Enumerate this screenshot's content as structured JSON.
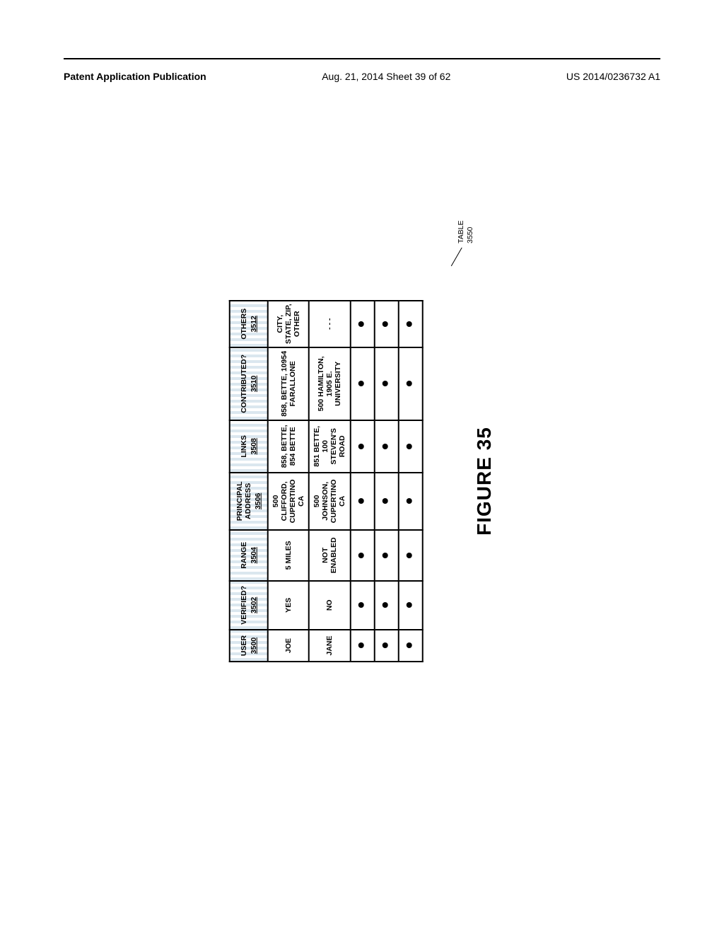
{
  "header": {
    "left": "Patent Application Publication",
    "center": "Aug. 21, 2014  Sheet 39 of 62",
    "right": "US 2014/0236732 A1"
  },
  "table": {
    "columns": [
      {
        "label": "USER",
        "ref": "3500",
        "widthClass": "col-user"
      },
      {
        "label": "VERIFIED?",
        "ref": "3502",
        "widthClass": "col-ver"
      },
      {
        "label": "RANGE",
        "ref": "3504",
        "widthClass": "col-range"
      },
      {
        "label": "PRINCIPAL ADDRESS",
        "ref": "3506",
        "widthClass": "col-addr"
      },
      {
        "label": "LINKS",
        "ref": "3508",
        "widthClass": "col-links"
      },
      {
        "label": "CONTRIBUTED?",
        "ref": "3510",
        "widthClass": "col-contr"
      },
      {
        "label": "OTHERS",
        "ref": "3512",
        "widthClass": "col-oth"
      }
    ],
    "rows": [
      [
        "JOE",
        "YES",
        "5 MILES",
        "500 CLIFFORD, CUPERTINO CA",
        "858, BETTE, 854 BETTE",
        "858, BETTE, 10954 FARALLONE",
        "CITY, STATE, ZIP, OTHER"
      ],
      [
        "JANE",
        "NO",
        "NOT ENABLED",
        "500 JOHNSON, CUPERTINO CA",
        "851 BETTE, 100 STEVEN'S ROAD",
        "500 HAMILTON, 1905 E. UNIVERSITY",
        "- - -"
      ],
      [
        "•",
        "•",
        "•",
        "•",
        "•",
        "•",
        "•"
      ],
      [
        "•",
        "•",
        "•",
        "•",
        "•",
        "•",
        "•"
      ],
      [
        "•",
        "•",
        "•",
        "•",
        "•",
        "•",
        "•"
      ]
    ],
    "callout": {
      "label": "TABLE",
      "ref": "3550"
    }
  },
  "figure_caption": "FIGURE 35"
}
